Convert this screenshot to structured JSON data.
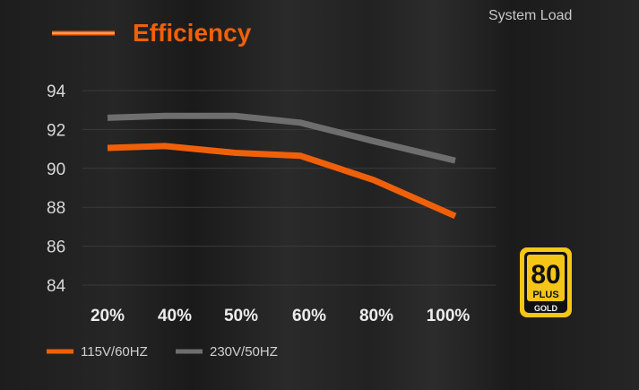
{
  "chart_data": {
    "type": "line",
    "title": "Efficiency",
    "xlabel": "System Load",
    "ylabel": "",
    "categories": [
      "20%",
      "40%",
      "50%",
      "60%",
      "80%",
      "100%"
    ],
    "yticks": [
      94,
      92,
      90,
      88,
      86,
      84
    ],
    "ylim": [
      84,
      94
    ],
    "grid": true,
    "legend_position": "bottom-left",
    "series": [
      {
        "name": "115V/60HZ",
        "color": "#f0600a",
        "values": [
          91.05,
          91.15,
          90.8,
          90.65,
          89.4,
          87.55
        ]
      },
      {
        "name": "230V/50HZ",
        "color": "#6e6e6e",
        "values": [
          92.6,
          92.7,
          92.7,
          92.35,
          91.4,
          90.4
        ]
      }
    ]
  },
  "badge": {
    "number": "80",
    "plus": "PLUS",
    "tier": "GOLD",
    "color": "#f5c518"
  }
}
